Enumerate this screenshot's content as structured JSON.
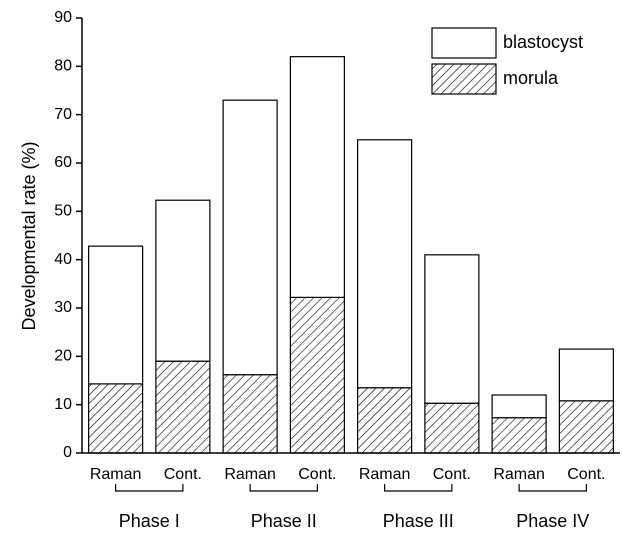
{
  "chart_data": {
    "type": "stacked_bar",
    "y_label": "Developmental rate (%)",
    "categories": [
      "Raman",
      "Cont.",
      "Raman",
      "Cont.",
      "Raman",
      "Cont.",
      "Raman",
      "Cont."
    ],
    "groups": [
      "Phase I",
      "Phase II",
      "Phase III",
      "Phase IV"
    ],
    "series": [
      {
        "name": "morula",
        "color": "#ffffff",
        "hatch": true,
        "values": [
          14.3,
          19,
          16.2,
          32.2,
          13.5,
          10.3,
          7.3,
          10.8
        ]
      },
      {
        "name": "blastocyst",
        "color": "#ffffff",
        "hatch": false,
        "values": [
          28.5,
          33.3,
          56.8,
          49.8,
          51.3,
          30.7,
          4.7,
          10.7
        ]
      }
    ],
    "ylim": [
      0,
      90
    ],
    "yticks": [
      0,
      10,
      20,
      30,
      40,
      50,
      60,
      70,
      80,
      90
    ],
    "legend": "top-right"
  }
}
